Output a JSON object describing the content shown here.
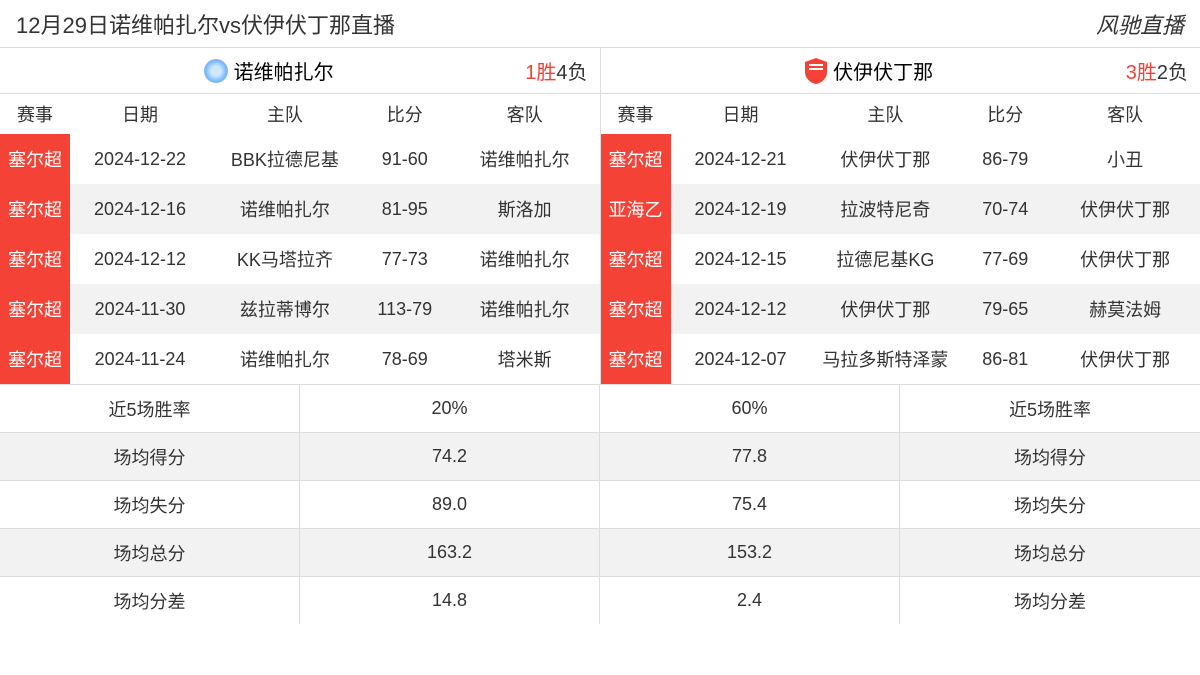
{
  "header": {
    "title": "12月29日诺维帕扎尔vs伏伊伏丁那直播",
    "brand": "风驰直播"
  },
  "colors": {
    "badge_bg": "#f44336",
    "badge_fg": "#ffffff",
    "alt_row_bg": "#f2f2f2",
    "border": "#dddddd",
    "text": "#333333",
    "win_color": "#f44336"
  },
  "table_headers": {
    "event": "赛事",
    "date": "日期",
    "home": "主队",
    "score": "比分",
    "away": "客队"
  },
  "left": {
    "team_name": "诺维帕扎尔",
    "logo_type": "circle",
    "record_wins": "1",
    "record_win_suffix": "胜",
    "record_losses": "4",
    "record_loss_suffix": "负",
    "rows": [
      {
        "event": "塞尔超",
        "date": "2024-12-22",
        "home": "BBK拉德尼基",
        "score": "91-60",
        "away": "诺维帕扎尔"
      },
      {
        "event": "塞尔超",
        "date": "2024-12-16",
        "home": "诺维帕扎尔",
        "score": "81-95",
        "away": "斯洛加"
      },
      {
        "event": "塞尔超",
        "date": "2024-12-12",
        "home": "KK马塔拉齐",
        "score": "77-73",
        "away": "诺维帕扎尔"
      },
      {
        "event": "塞尔超",
        "date": "2024-11-30",
        "home": "兹拉蒂博尔",
        "score": "113-79",
        "away": "诺维帕扎尔"
      },
      {
        "event": "塞尔超",
        "date": "2024-11-24",
        "home": "诺维帕扎尔",
        "score": "78-69",
        "away": "塔米斯"
      }
    ]
  },
  "right": {
    "team_name": "伏伊伏丁那",
    "logo_type": "shield",
    "record_wins": "3",
    "record_win_suffix": "胜",
    "record_losses": "2",
    "record_loss_suffix": "负",
    "rows": [
      {
        "event": "塞尔超",
        "date": "2024-12-21",
        "home": "伏伊伏丁那",
        "score": "86-79",
        "away": "小丑"
      },
      {
        "event": "亚海乙",
        "date": "2024-12-19",
        "home": "拉波特尼奇",
        "score": "70-74",
        "away": "伏伊伏丁那"
      },
      {
        "event": "塞尔超",
        "date": "2024-12-15",
        "home": "拉德尼基KG",
        "score": "77-69",
        "away": "伏伊伏丁那"
      },
      {
        "event": "塞尔超",
        "date": "2024-12-12",
        "home": "伏伊伏丁那",
        "score": "79-65",
        "away": "赫莫法姆"
      },
      {
        "event": "塞尔超",
        "date": "2024-12-07",
        "home": "马拉多斯特泽蒙",
        "score": "86-81",
        "away": "伏伊伏丁那"
      }
    ]
  },
  "stats": [
    {
      "label_left": "近5场胜率",
      "val_left": "20%",
      "val_right": "60%",
      "label_right": "近5场胜率"
    },
    {
      "label_left": "场均得分",
      "val_left": "74.2",
      "val_right": "77.8",
      "label_right": "场均得分"
    },
    {
      "label_left": "场均失分",
      "val_left": "89.0",
      "val_right": "75.4",
      "label_right": "场均失分"
    },
    {
      "label_left": "场均总分",
      "val_left": "163.2",
      "val_right": "153.2",
      "label_right": "场均总分"
    },
    {
      "label_left": "场均分差",
      "val_left": "14.8",
      "val_right": "2.4",
      "label_right": "场均分差"
    }
  ]
}
